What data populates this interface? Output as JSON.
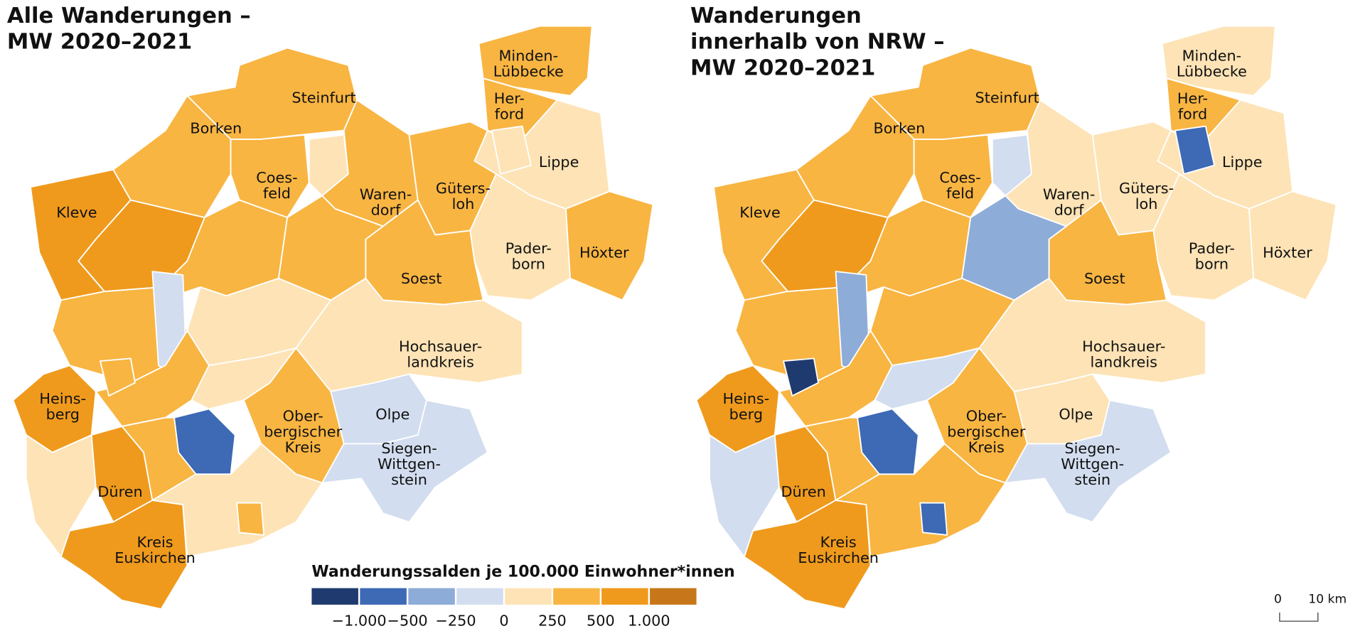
{
  "maps": [
    {
      "title": [
        "Alle Wanderungen –",
        "MW 2020–2021"
      ],
      "regions": [
        {
          "label": [
            "Borken"
          ],
          "color": "#f8b542"
        },
        {
          "label": [
            "Steinfurt"
          ],
          "color": "#f8b542"
        },
        {
          "label": [
            "Minden-",
            "Lübbecke"
          ],
          "color": "#f8b542"
        },
        {
          "label": [
            "Her-",
            "ford"
          ],
          "color": "#f8b542"
        },
        {
          "label": [
            "Lippe"
          ],
          "color": "#fde3b6"
        },
        {
          "color": "#fde3b6"
        },
        {
          "label": [
            "Coes-",
            "feld"
          ],
          "color": "#f8b542"
        },
        {
          "color": "#fde3b6"
        },
        {
          "label": [
            "Waren-",
            "dorf"
          ],
          "color": "#f8b542"
        },
        {
          "label": [
            "Güters-",
            "loh"
          ],
          "color": "#f8b542"
        },
        {
          "label": [
            "Pader-",
            "born"
          ],
          "color": "#fde3b6"
        },
        {
          "label": [
            "Höxter"
          ],
          "color": "#f8b542"
        },
        {
          "label": [
            "Soest"
          ],
          "color": "#f8b542"
        },
        {
          "label": [
            "Kleve"
          ],
          "color": "#ef9a1d"
        },
        {
          "color": "#ef9a1d"
        },
        {
          "color": "#f8b542"
        },
        {
          "color": "#f8b542"
        },
        {
          "color": "#fde3b6"
        },
        {
          "label": [
            "Hochsauer-",
            "landkreis"
          ],
          "color": "#fde3b6"
        },
        {
          "color": "#f8b542"
        },
        {
          "color": "#d2ddef"
        },
        {
          "label": [
            "Heins-",
            "berg"
          ],
          "color": "#ef9a1d"
        },
        {
          "color": "#f8b542"
        },
        {
          "color": "#fde3b6"
        },
        {
          "label": [
            "Ober-",
            "bergischer",
            "Kreis"
          ],
          "color": "#f8b542"
        },
        {
          "color": "#3d69b5"
        },
        {
          "color": "#fde3b6"
        },
        {
          "label": [
            "Düren"
          ],
          "color": "#ef9a1d"
        },
        {
          "color": "#f8b542"
        },
        {
          "color": "#f8b542"
        },
        {
          "label": [
            "Kreis",
            "Euskirchen"
          ],
          "color": "#ef9a1d"
        },
        {
          "color": "#fde3b6"
        },
        {
          "color": "#f8b542"
        },
        {
          "label": [
            "Olpe"
          ],
          "color": "#d2ddef"
        },
        {
          "label": [
            "Siegen-",
            "Wittgen-",
            "stein"
          ],
          "color": "#d2ddef"
        }
      ]
    },
    {
      "title": [
        "Wanderungen",
        "innerhalb von NRW –",
        "MW 2020–2021"
      ],
      "regions": [
        {
          "label": [
            "Borken"
          ],
          "color": "#f8b542"
        },
        {
          "label": [
            "Steinfurt"
          ],
          "color": "#f8b542"
        },
        {
          "label": [
            "Minden-",
            "Lübbecke"
          ],
          "color": "#fde3b6"
        },
        {
          "label": [
            "Her-",
            "ford"
          ],
          "color": "#f8b542"
        },
        {
          "label": [
            "Lippe"
          ],
          "color": "#fde3b6"
        },
        {
          "color": "#3d69b5"
        },
        {
          "label": [
            "Coes-",
            "feld"
          ],
          "color": "#f8b542"
        },
        {
          "color": "#d2ddef"
        },
        {
          "label": [
            "Waren-",
            "dorf"
          ],
          "color": "#fde3b6"
        },
        {
          "label": [
            "Güters-",
            "loh"
          ],
          "color": "#fde3b6"
        },
        {
          "label": [
            "Pader-",
            "born"
          ],
          "color": "#fde3b6"
        },
        {
          "label": [
            "Höxter"
          ],
          "color": "#fde3b6"
        },
        {
          "label": [
            "Soest"
          ],
          "color": "#f8b542"
        },
        {
          "label": [
            "Kleve"
          ],
          "color": "#f8b542"
        },
        {
          "color": "#ef9a1d"
        },
        {
          "color": "#f8b542"
        },
        {
          "color": "#8eacd8"
        },
        {
          "color": "#f8b542"
        },
        {
          "label": [
            "Hochsauer-",
            "landkreis"
          ],
          "color": "#fde3b6"
        },
        {
          "color": "#f8b542"
        },
        {
          "color": "#8eacd8"
        },
        {
          "label": [
            "Heins-",
            "berg"
          ],
          "color": "#ef9a1d"
        },
        {
          "color": "#f8b542"
        },
        {
          "color": "#d2ddef"
        },
        {
          "label": [
            "Ober-",
            "bergischer",
            "Kreis"
          ],
          "color": "#f8b542"
        },
        {
          "color": "#3d69b5"
        },
        {
          "color": "#d2ddef"
        },
        {
          "label": [
            "Düren"
          ],
          "color": "#ef9a1d"
        },
        {
          "color": "#f8b542"
        },
        {
          "color": "#1f3a6e"
        },
        {
          "label": [
            "Kreis",
            "Euskirchen"
          ],
          "color": "#ef9a1d"
        },
        {
          "color": "#f8b542"
        },
        {
          "color": "#3d69b5"
        },
        {
          "label": [
            "Olpe"
          ],
          "color": "#fde3b6"
        },
        {
          "label": [
            "Siegen-",
            "Wittgen-",
            "stein"
          ],
          "color": "#d2ddef"
        }
      ]
    }
  ],
  "legend": {
    "title": "Wanderungssalden je 100.000 Einwohner*innen",
    "colors": [
      "#1f3a6e",
      "#3d69b5",
      "#8eacd8",
      "#d2ddef",
      "#fde3b6",
      "#f8b542",
      "#ef9a1d",
      "#c7771a"
    ],
    "labels": [
      "−1.000",
      "−500",
      "−250",
      "0",
      "250",
      "500",
      "1.000"
    ]
  },
  "scale_bar": {
    "labels": [
      "0",
      "10 km"
    ]
  }
}
